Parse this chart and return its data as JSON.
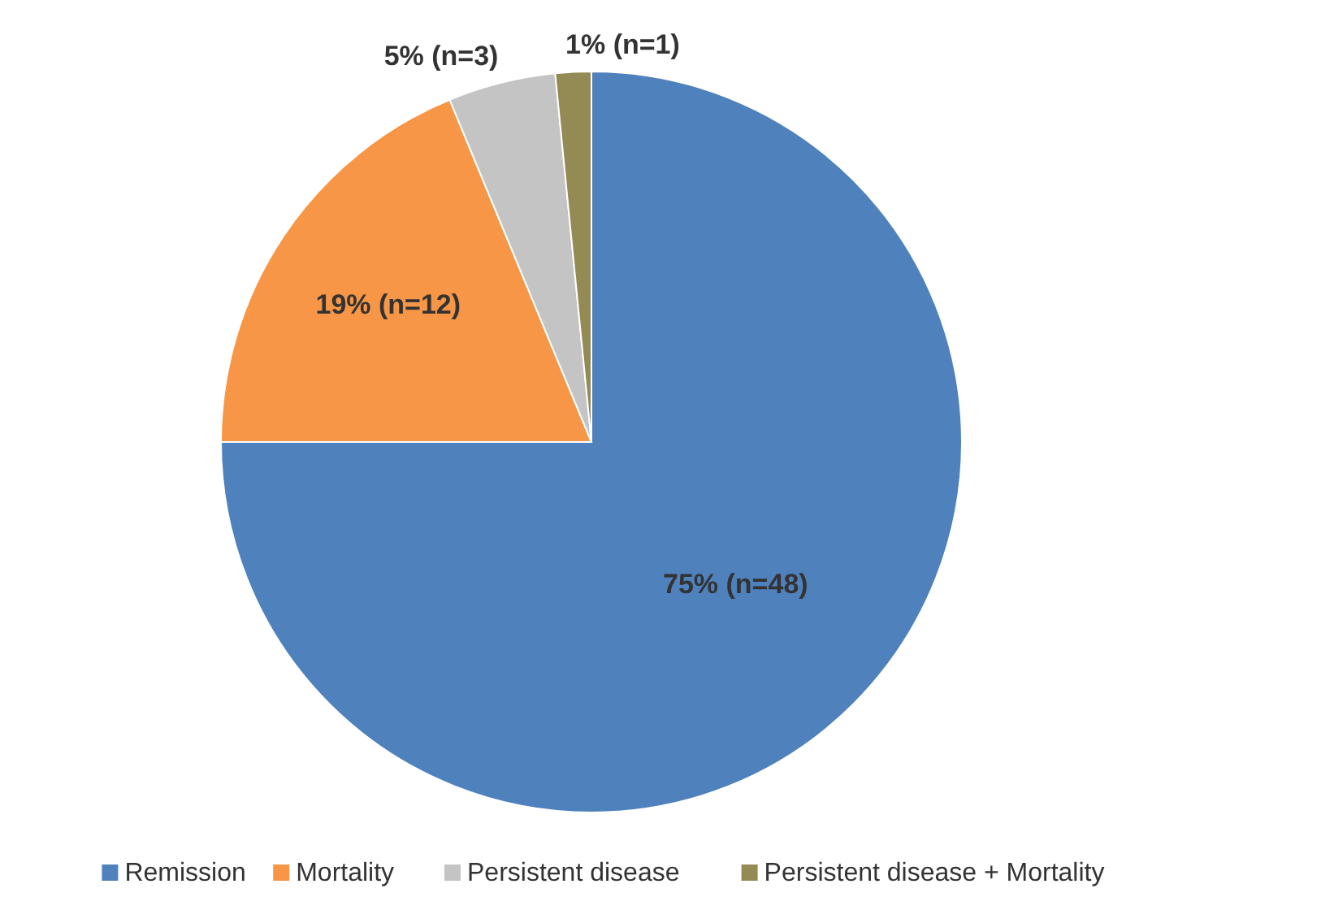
{
  "chart_data": {
    "type": "pie",
    "categories": [
      "Remission",
      "Mortality",
      "Persistent disease",
      "Persistent disease + Mortality"
    ],
    "values": [
      48,
      12,
      3,
      1
    ],
    "value_labels": [
      "75% (n=48)",
      "19% (n=12)",
      "5% (n=3)",
      "1% (n=1)"
    ],
    "colors": [
      "#4f81bd",
      "#f79646",
      "#c4c4c4",
      "#948a54"
    ],
    "legend": "bottom"
  }
}
